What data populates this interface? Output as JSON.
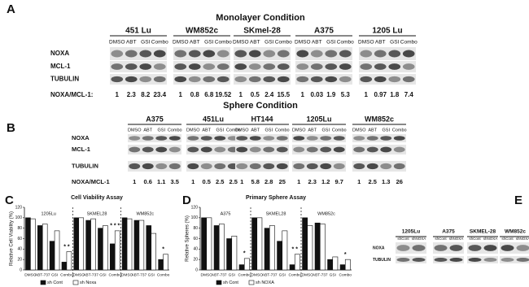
{
  "panel_labels": [
    "A",
    "B",
    "C",
    "D",
    "E"
  ],
  "blots": {
    "A": {
      "title": "Monolayer Condition",
      "rows": [
        "NOXA",
        "MCL-1",
        "TUBULIN"
      ],
      "ratio_label": "NOXA/MCL-1:",
      "groups": [
        {
          "name": "451 Lu",
          "lanes": [
            "DMSO",
            "ABT",
            "GSI",
            "Combo"
          ],
          "ratios": [
            1,
            2.3,
            8.2,
            23.4
          ]
        },
        {
          "name": "WM852c",
          "lanes": [
            "DMSO",
            "ABT",
            "GSI",
            "Combo"
          ],
          "ratios": [
            1,
            0.8,
            6.8,
            19.52
          ]
        },
        {
          "name": "SKmel-28",
          "lanes": [
            "DMSO",
            "ABT",
            "GSI",
            "Combo"
          ],
          "ratios": [
            1,
            0.5,
            2.4,
            15.5
          ]
        },
        {
          "name": "A375",
          "lanes": [
            "DMSO",
            "ABT",
            "GSI",
            "Combo"
          ],
          "ratios": [
            1,
            0.03,
            1.9,
            5.3
          ]
        },
        {
          "name": "1205 Lu",
          "lanes": [
            "DMSO",
            "ABT",
            "GSI",
            "Combo"
          ],
          "ratios": [
            1,
            0.97,
            1.8,
            7.4
          ]
        }
      ]
    },
    "B": {
      "title": "Sphere Condition",
      "rows": [
        "NOXA",
        "MCL-1",
        "TUBULIN"
      ],
      "ratio_label": "NOXA/MCL-1",
      "groups": [
        {
          "name": "A375",
          "lanes": [
            "DMSO",
            "ABT",
            "GSI",
            "Combo"
          ],
          "ratios": [
            1,
            0.6,
            1.1,
            3.5
          ]
        },
        {
          "name": "451Lu",
          "lanes": [
            "DMSO",
            "ABT",
            "GSI",
            "Combo"
          ],
          "ratios": [
            1,
            0.5,
            2.5,
            2.5
          ]
        },
        {
          "name": "HT144",
          "lanes": [
            "DMSO",
            "ABT",
            "GSI",
            "Combo"
          ],
          "ratios": [
            1,
            5.8,
            2.8,
            25
          ]
        },
        {
          "name": "1205Lu",
          "lanes": [
            "DMSO",
            "ABT",
            "GSI",
            "Combo"
          ],
          "ratios": [
            1,
            2.3,
            1.2,
            9.7
          ]
        },
        {
          "name": "WM852c",
          "lanes": [
            "DMSO",
            "ABT",
            "GSI",
            "Combo"
          ],
          "ratios": [
            1,
            2.5,
            1.3,
            26
          ]
        }
      ]
    },
    "E": {
      "rows": [
        "NOXA",
        "TUBULIN"
      ],
      "groups": [
        {
          "name": "1205Lu",
          "lanes": [
            "shCont",
            "shNOXA"
          ]
        },
        {
          "name": "A375",
          "lanes": [
            "shCont",
            "shNOXA"
          ]
        },
        {
          "name": "SKMEL-28",
          "lanes": [
            "shCont",
            "shNOXA"
          ]
        },
        {
          "name": "WM852c",
          "lanes": [
            "shCont",
            "shNOXA"
          ]
        }
      ]
    }
  },
  "chart_data": [
    {
      "type": "bar",
      "title": "Cell Viability Assay",
      "y_label": "Relative Cell Viability (%)",
      "groups": [
        "1205Lu",
        "SKMEL28",
        "WM852c"
      ],
      "categories": [
        "DMSO",
        "ABT-737",
        "GSI",
        "Combo",
        "DMSO",
        "ABT-737",
        "GSI",
        "Combo",
        "DMSO",
        "ABT-737",
        "GSI",
        "Combo"
      ],
      "series": [
        {
          "name": "sh Cont",
          "color": "#111111",
          "values": [
            100,
            85,
            55,
            15,
            100,
            95,
            80,
            50,
            100,
            95,
            85,
            20
          ]
        },
        {
          "name": "sh Noxa",
          "color": "#ffffff",
          "values": [
            98,
            88,
            75,
            35,
            100,
            98,
            85,
            75,
            98,
            95,
            70,
            30
          ]
        }
      ],
      "annotations": [
        "* *",
        "* * *",
        "*"
      ],
      "ylim": [
        0,
        120
      ],
      "yticks": [
        0,
        20,
        40,
        60,
        80,
        100,
        120
      ]
    },
    {
      "type": "bar",
      "title": "Primary Sphere Assay",
      "y_label": "Relative Spheres (%)",
      "groups": [
        "A375",
        "SKMEL28",
        "WM852c"
      ],
      "categories": [
        "DMSO",
        "ABT-737",
        "GSI",
        "Combo",
        "DMSO",
        "ABT-737",
        "GSI",
        "Combo",
        "DMSO",
        "ABT-737",
        "GSI",
        "Combo"
      ],
      "series": [
        {
          "name": "sh Cont",
          "color": "#111111",
          "values": [
            100,
            85,
            60,
            10,
            100,
            80,
            55,
            10,
            100,
            90,
            20,
            10
          ]
        },
        {
          "name": "sh NOXA",
          "color": "#ffffff",
          "values": [
            100,
            88,
            65,
            22,
            100,
            85,
            75,
            30,
            85,
            88,
            25,
            20
          ]
        }
      ],
      "annotations": [
        "*",
        "* *",
        "*"
      ],
      "ylim": [
        0,
        120
      ],
      "yticks": [
        0,
        20,
        40,
        60,
        80,
        100,
        120
      ]
    }
  ]
}
